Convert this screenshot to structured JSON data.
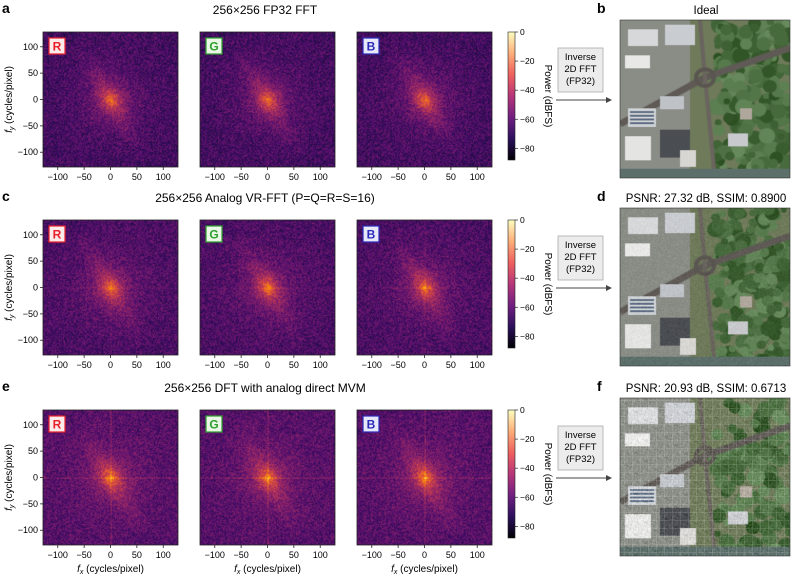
{
  "rows": [
    {
      "panel_letter": "a",
      "title": "256×256 FP32 FFT",
      "right_letter": "b",
      "right_title": "Ideal",
      "button_lines": [
        "Inverse",
        "2D FFT",
        "(FP32)"
      ],
      "noise": 0.0,
      "cross": 0.0
    },
    {
      "panel_letter": "c",
      "title": "256×256 Analog VR-FFT (P=Q=R=S=16)",
      "right_letter": "d",
      "right_title": "PSNR: 27.32 dB, SSIM: 0.8900",
      "button_lines": [
        "Inverse",
        "2D FFT",
        "(FP32)"
      ],
      "noise": 0.15,
      "cross": 0.35
    },
    {
      "panel_letter": "e",
      "title": "256×256 DFT with analog direct MVM",
      "right_letter": "f",
      "right_title": "PSNR: 20.93 dB, SSIM: 0.6713",
      "button_lines": [
        "Inverse",
        "2D FFT",
        "(FP32)"
      ],
      "noise": 0.35,
      "cross": 0.8
    }
  ],
  "channels": [
    {
      "label": "R",
      "color": "#e8202a",
      "bg": "#fdeaea"
    },
    {
      "label": "G",
      "color": "#2ca02c",
      "bg": "#eaf7e6"
    },
    {
      "label": "B",
      "color": "#2a2ab8",
      "bg": "#e8e8fb"
    }
  ],
  "axes": {
    "xlabel": "f",
    "xlabel_sub": "x",
    "xlabel_unit": " (cycles/pixel)",
    "ylabel": "f",
    "ylabel_sub": "y",
    "ylabel_unit": " (cycles/pixel)",
    "xticks": [
      -100,
      -50,
      0,
      50,
      100
    ],
    "yticks": [
      100,
      50,
      0,
      -50,
      -100
    ],
    "range": [
      -128,
      128
    ]
  },
  "colorbar": {
    "label": "Power (dBFS)",
    "ticks": [
      0,
      -20,
      -40,
      -60,
      -80
    ],
    "range": [
      -88,
      0
    ],
    "colors": [
      "#000004",
      "#2c105c",
      "#711f81",
      "#b63679",
      "#ee605e",
      "#fdae78",
      "#fcfdbf"
    ]
  },
  "chart_data": {
    "type": "heatmap",
    "x": {
      "range": [
        -128,
        128
      ],
      "ticks": [
        -100,
        -50,
        0,
        50,
        100
      ]
    },
    "y": {
      "range": [
        -128,
        128
      ],
      "ticks": [
        100,
        50,
        0,
        -50,
        -100
      ]
    },
    "value_range": [
      -88,
      0
    ]
  }
}
